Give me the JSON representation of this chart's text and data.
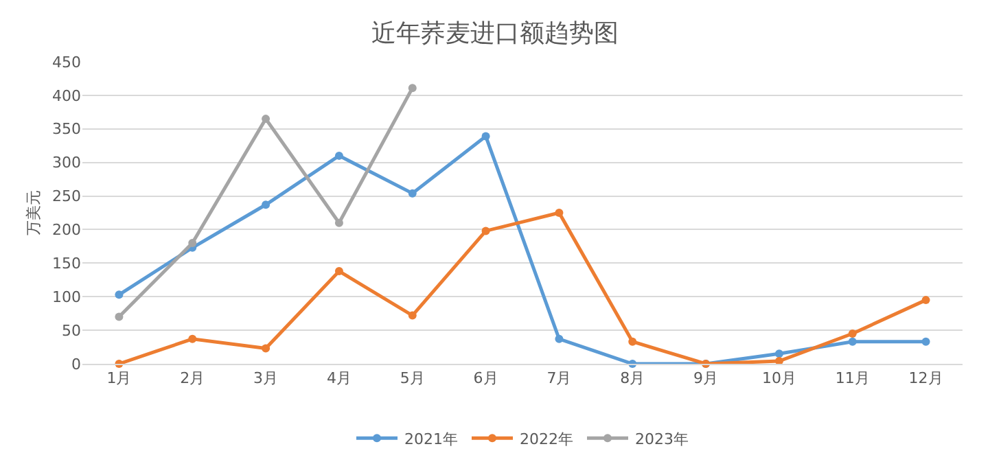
{
  "chart_data": {
    "type": "line",
    "title": "近年荞麦进口额趋势图",
    "ylabel": "万美元",
    "categories": [
      "1月",
      "2月",
      "3月",
      "4月",
      "5月",
      "6月",
      "7月",
      "8月",
      "9月",
      "10月",
      "11月",
      "12月"
    ],
    "series": [
      {
        "name": "2021年",
        "color": "#5b9bd5",
        "values": [
          103,
          173,
          237,
          310,
          254,
          339,
          37,
          0,
          0,
          15,
          33,
          33
        ]
      },
      {
        "name": "2022年",
        "color": "#ed7d31",
        "values": [
          0,
          37,
          23,
          138,
          72,
          198,
          225,
          33,
          0,
          4,
          45,
          95
        ]
      },
      {
        "name": "2023年",
        "color": "#a5a5a5",
        "values": [
          70,
          180,
          365,
          210,
          411,
          null,
          null,
          null,
          null,
          null,
          null,
          null
        ]
      }
    ],
    "ylim": [
      0,
      450
    ],
    "yticks": [
      0,
      50,
      100,
      150,
      200,
      250,
      300,
      350,
      400,
      450
    ],
    "grid": "y",
    "legend": "bottom",
    "marker": "circle",
    "line_style": "solid"
  }
}
